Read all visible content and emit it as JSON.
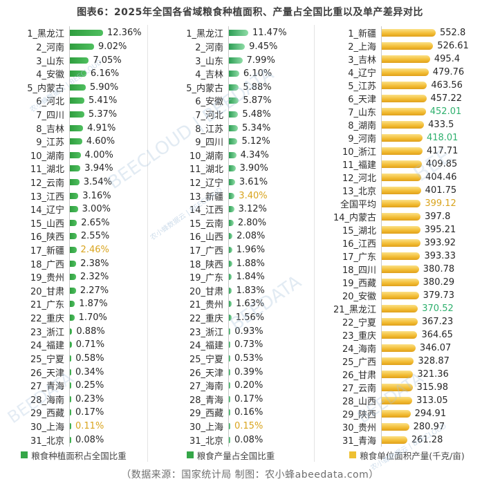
{
  "title": "图表6：2025年全国各省域粮食种植面积、产量占全国比重以及单产差异对比",
  "footer": "（数据来源：国家统计局  制图：农小蜂abeedata.com）",
  "colors": {
    "area_bar_green": "#3aa648",
    "yield_bar_yellow": "#f0bc35",
    "highlight_orange": "#d9a41d",
    "highlight_green": "#2eb06d",
    "axis_line": "#c9c9c9"
  },
  "watermarks": [
    "农小蜂数据云 | BEECLOUD",
    "BEECLOUD | BEEDATA",
    "农小蜂数据云 | BEECLOUD",
    "BEEDATA",
    "BEEDATA",
    "BEEDATA",
    "农小蜂数据云 | BEECLOUD",
    "BEE"
  ],
  "chart_data": [
    {
      "type": "bar",
      "orientation": "horizontal",
      "legend": "粮食种植面积占全国比重",
      "unit": "%",
      "axis_max": 12.36,
      "rows": [
        {
          "label": "1_黑龙江",
          "value": 12.36,
          "display": "12.36%",
          "color": null
        },
        {
          "label": "2_河南",
          "value": 9.02,
          "display": "9.02%",
          "color": null
        },
        {
          "label": "3_山东",
          "value": 7.05,
          "display": "7.05%",
          "color": null
        },
        {
          "label": "4_安徽",
          "value": 6.16,
          "display": "6.16%",
          "color": null
        },
        {
          "label": "5_内蒙古",
          "value": 5.9,
          "display": "5.90%",
          "color": null
        },
        {
          "label": "6_河北",
          "value": 5.41,
          "display": "5.41%",
          "color": null
        },
        {
          "label": "7_四川",
          "value": 5.37,
          "display": "5.37%",
          "color": null
        },
        {
          "label": "8_吉林",
          "value": 4.91,
          "display": "4.91%",
          "color": null
        },
        {
          "label": "9_江苏",
          "value": 4.6,
          "display": "4.60%",
          "color": null
        },
        {
          "label": "10_湖南",
          "value": 4.0,
          "display": "4.00%",
          "color": null
        },
        {
          "label": "11_湖北",
          "value": 3.94,
          "display": "3.94%",
          "color": null
        },
        {
          "label": "12_云南",
          "value": 3.54,
          "display": "3.54%",
          "color": null
        },
        {
          "label": "13_江西",
          "value": 3.16,
          "display": "3.16%",
          "color": null
        },
        {
          "label": "14_辽宁",
          "value": 3.0,
          "display": "3.00%",
          "color": null
        },
        {
          "label": "15_山西",
          "value": 2.65,
          "display": "2.65%",
          "color": null
        },
        {
          "label": "16_陕西",
          "value": 2.55,
          "display": "2.55%",
          "color": null
        },
        {
          "label": "17_新疆",
          "value": 2.46,
          "display": "2.46%",
          "color": "orange"
        },
        {
          "label": "18_广西",
          "value": 2.38,
          "display": "2.38%",
          "color": null
        },
        {
          "label": "19_贵州",
          "value": 2.32,
          "display": "2.32%",
          "color": null
        },
        {
          "label": "20_甘肃",
          "value": 2.27,
          "display": "2.27%",
          "color": null
        },
        {
          "label": "21_广东",
          "value": 1.87,
          "display": "1.87%",
          "color": null
        },
        {
          "label": "22_重庆",
          "value": 1.7,
          "display": "1.70%",
          "color": null
        },
        {
          "label": "23_浙江",
          "value": 0.88,
          "display": "0.88%",
          "color": null
        },
        {
          "label": "24_福建",
          "value": 0.71,
          "display": "0.71%",
          "color": null
        },
        {
          "label": "25_宁夏",
          "value": 0.58,
          "display": "0.58%",
          "color": null
        },
        {
          "label": "26_天津",
          "value": 0.34,
          "display": "0.34%",
          "color": null
        },
        {
          "label": "27_青海",
          "value": 0.25,
          "display": "0.25%",
          "color": null
        },
        {
          "label": "28_海南",
          "value": 0.23,
          "display": "0.23%",
          "color": null
        },
        {
          "label": "29_西藏",
          "value": 0.17,
          "display": "0.17%",
          "color": null
        },
        {
          "label": "30_上海",
          "value": 0.11,
          "display": "0.11%",
          "color": "orange"
        },
        {
          "label": "31_北京",
          "value": 0.08,
          "display": "0.08%",
          "color": null
        }
      ]
    },
    {
      "type": "bar",
      "orientation": "horizontal",
      "legend": "粮食产量占全国比重",
      "unit": "%",
      "axis_max": 11.47,
      "rows": [
        {
          "label": "1_黑龙江",
          "value": 11.47,
          "display": "11.47%",
          "color": null
        },
        {
          "label": "2_河南",
          "value": 9.45,
          "display": "9.45%",
          "color": null
        },
        {
          "label": "3_山东",
          "value": 7.99,
          "display": "7.99%",
          "color": null
        },
        {
          "label": "4_吉林",
          "value": 6.1,
          "display": "6.10%",
          "color": null
        },
        {
          "label": "5_内蒙古",
          "value": 5.88,
          "display": "5.88%",
          "color": null
        },
        {
          "label": "6_安徽",
          "value": 5.87,
          "display": "5.87%",
          "color": null
        },
        {
          "label": "7_河北",
          "value": 5.48,
          "display": "5.48%",
          "color": null
        },
        {
          "label": "8_江苏",
          "value": 5.34,
          "display": "5.34%",
          "color": null
        },
        {
          "label": "9_四川",
          "value": 5.12,
          "display": "5.12%",
          "color": null
        },
        {
          "label": "10_湖南",
          "value": 4.34,
          "display": "4.34%",
          "color": null
        },
        {
          "label": "11_湖北",
          "value": 3.9,
          "display": "3.90%",
          "color": null
        },
        {
          "label": "12_辽宁",
          "value": 3.61,
          "display": "3.61%",
          "color": null
        },
        {
          "label": "13_新疆",
          "value": 3.4,
          "display": "3.40%",
          "color": "orange"
        },
        {
          "label": "14_江西",
          "value": 3.12,
          "display": "3.12%",
          "color": null
        },
        {
          "label": "15_云南",
          "value": 2.8,
          "display": "2.80%",
          "color": null
        },
        {
          "label": "16_山西",
          "value": 2.08,
          "display": "2.08%",
          "color": null
        },
        {
          "label": "17_广西",
          "value": 1.96,
          "display": "1.96%",
          "color": null
        },
        {
          "label": "18_陕西",
          "value": 1.88,
          "display": "1.88%",
          "color": null
        },
        {
          "label": "19_广东",
          "value": 1.84,
          "display": "1.84%",
          "color": null
        },
        {
          "label": "20_甘肃",
          "value": 1.83,
          "display": "1.83%",
          "color": null
        },
        {
          "label": "21_贵州",
          "value": 1.63,
          "display": "1.63%",
          "color": null
        },
        {
          "label": "22_重庆",
          "value": 1.56,
          "display": "1.56%",
          "color": null
        },
        {
          "label": "23_浙江",
          "value": 0.93,
          "display": "0.93%",
          "color": null
        },
        {
          "label": "24_福建",
          "value": 0.73,
          "display": "0.73%",
          "color": null
        },
        {
          "label": "25_宁夏",
          "value": 0.53,
          "display": "0.53%",
          "color": null
        },
        {
          "label": "26_天津",
          "value": 0.39,
          "display": "0.39%",
          "color": null
        },
        {
          "label": "27_海南",
          "value": 0.2,
          "display": "0.20%",
          "color": null
        },
        {
          "label": "28_青海",
          "value": 0.17,
          "display": "0.17%",
          "color": null
        },
        {
          "label": "29_西藏",
          "value": 0.16,
          "display": "0.16%",
          "color": null
        },
        {
          "label": "30_上海",
          "value": 0.15,
          "display": "0.15%",
          "color": "orange"
        },
        {
          "label": "31_北京",
          "value": 0.08,
          "display": "0.08%",
          "color": null
        }
      ]
    },
    {
      "type": "bar",
      "orientation": "horizontal",
      "legend": "粮食单位面积产量(千克/亩)",
      "unit": "千克/亩",
      "axis_max": 552.8,
      "rows": [
        {
          "label": "1_新疆",
          "value": 552.8,
          "display": "552.8",
          "color": null
        },
        {
          "label": "2_上海",
          "value": 526.61,
          "display": "526.61",
          "color": null
        },
        {
          "label": "3_吉林",
          "value": 495.4,
          "display": "495.4",
          "color": null
        },
        {
          "label": "4_辽宁",
          "value": 479.76,
          "display": "479.76",
          "color": null
        },
        {
          "label": "5_江苏",
          "value": 463.56,
          "display": "463.56",
          "color": null
        },
        {
          "label": "6_天津",
          "value": 457.22,
          "display": "457.22",
          "color": null
        },
        {
          "label": "7_山东",
          "value": 452.01,
          "display": "452.01",
          "color": "green"
        },
        {
          "label": "8_湖南",
          "value": 433.5,
          "display": "433.5",
          "color": null
        },
        {
          "label": "9_河南",
          "value": 418.01,
          "display": "418.01",
          "color": "green"
        },
        {
          "label": "10_浙江",
          "value": 417.71,
          "display": "417.71",
          "color": null
        },
        {
          "label": "11_福建",
          "value": 409.85,
          "display": "409.85",
          "color": null
        },
        {
          "label": "12_河北",
          "value": 404.46,
          "display": "404.46",
          "color": null
        },
        {
          "label": "13_北京",
          "value": 401.75,
          "display": "401.75",
          "color": null
        },
        {
          "label": "全国平均",
          "value": 399.12,
          "display": "399.12",
          "color": "orange"
        },
        {
          "label": "14_内蒙古",
          "value": 397.8,
          "display": "397.8",
          "color": null
        },
        {
          "label": "15_湖北",
          "value": 395.21,
          "display": "395.21",
          "color": null
        },
        {
          "label": "16_江西",
          "value": 393.92,
          "display": "393.92",
          "color": null
        },
        {
          "label": "17_广东",
          "value": 393.33,
          "display": "393.33",
          "color": null
        },
        {
          "label": "18_四川",
          "value": 380.78,
          "display": "380.78",
          "color": null
        },
        {
          "label": "19_西藏",
          "value": 380.29,
          "display": "380.29",
          "color": null
        },
        {
          "label": "20_安徽",
          "value": 379.73,
          "display": "379.73",
          "color": null
        },
        {
          "label": "21_黑龙江",
          "value": 370.52,
          "display": "370.52",
          "color": "green"
        },
        {
          "label": "22_宁夏",
          "value": 367.23,
          "display": "367.23",
          "color": null
        },
        {
          "label": "23_重庆",
          "value": 364.65,
          "display": "364.65",
          "color": null
        },
        {
          "label": "24_海南",
          "value": 346.07,
          "display": "346.07",
          "color": null
        },
        {
          "label": "25_广西",
          "value": 328.87,
          "display": "328.87",
          "color": null
        },
        {
          "label": "26_甘肃",
          "value": 321.36,
          "display": "321.36",
          "color": null
        },
        {
          "label": "27_云南",
          "value": 315.98,
          "display": "315.98",
          "color": null
        },
        {
          "label": "28_山西",
          "value": 313.05,
          "display": "313.05",
          "color": null
        },
        {
          "label": "29_陕西",
          "value": 294.91,
          "display": "294.91",
          "color": null
        },
        {
          "label": "30_贵州",
          "value": 280.97,
          "display": "280.97",
          "color": null
        },
        {
          "label": "31_青海",
          "value": 261.28,
          "display": "261.28",
          "color": null
        }
      ]
    }
  ]
}
